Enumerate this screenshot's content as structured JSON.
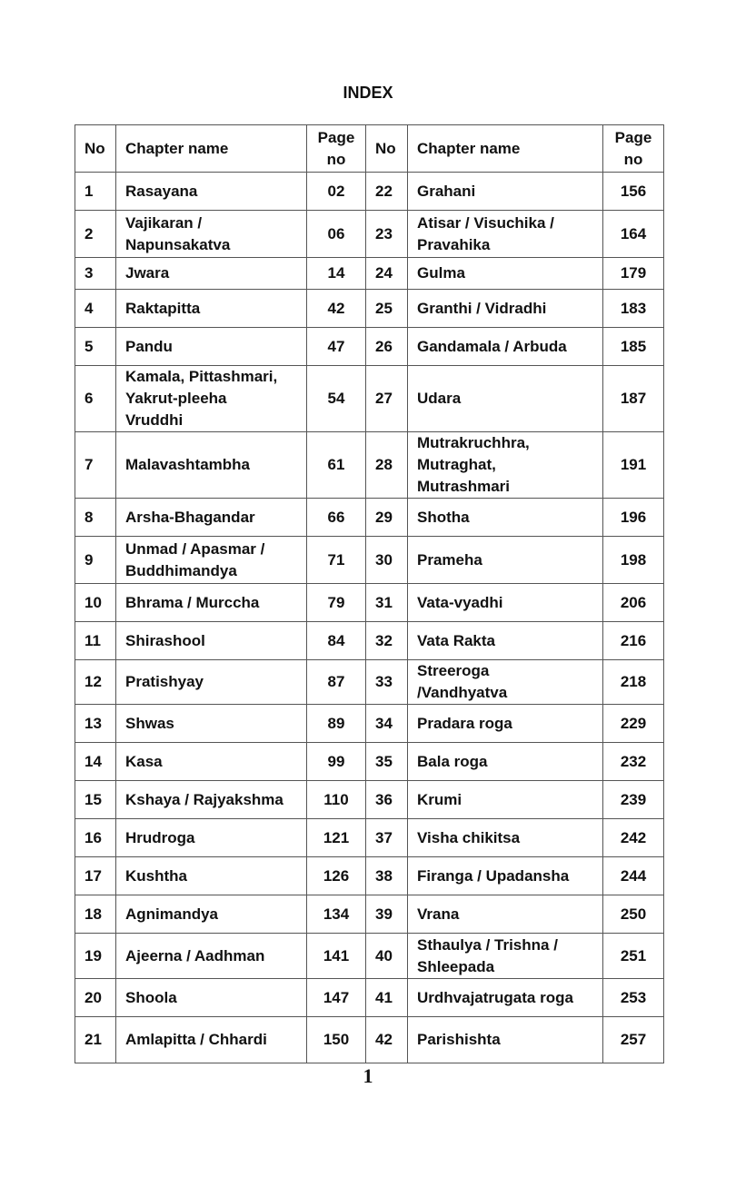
{
  "title": "INDEX",
  "headers": {
    "no": "No",
    "chapter": "Chapter name",
    "page": "Page\nno"
  },
  "rows": [
    [
      {
        "no": "1",
        "name": "Rasayana",
        "page": "02"
      },
      {
        "no": "22",
        "name": "Grahani",
        "page": "156"
      }
    ],
    [
      {
        "no": "2",
        "name": "Vajikaran /\nNapunsakatva",
        "page": "06"
      },
      {
        "no": "23",
        "name": "Atisar / Visuchika /\nPravahika",
        "page": "164"
      }
    ],
    [
      {
        "no": "3",
        "name": "Jwara",
        "page": "14"
      },
      {
        "no": "24",
        "name": "Gulma",
        "page": "179"
      }
    ],
    [
      {
        "no": "4",
        "name": "Raktapitta",
        "page": "42"
      },
      {
        "no": "25",
        "name": "Granthi / Vidradhi",
        "page": "183"
      }
    ],
    [
      {
        "no": "5",
        "name": "Pandu",
        "page": "47"
      },
      {
        "no": "26",
        "name": "Gandamala / Arbuda",
        "page": "185"
      }
    ],
    [
      {
        "no": "6",
        "name": "Kamala, Pittashmari,\nYakrut-pleeha\nVruddhi",
        "page": "54"
      },
      {
        "no": "27",
        "name": "Udara",
        "page": "187"
      }
    ],
    [
      {
        "no": "7",
        "name": "Malavashtambha",
        "page": "61"
      },
      {
        "no": "28",
        "name": "Mutrakruchhra,\nMutraghat,\nMutrashmari",
        "page": "191"
      }
    ],
    [
      {
        "no": "8",
        "name": "Arsha-Bhagandar",
        "page": "66"
      },
      {
        "no": "29",
        "name": "Shotha",
        "page": "196"
      }
    ],
    [
      {
        "no": "9",
        "name": "Unmad / Apasmar /\nBuddhimandya",
        "page": "71"
      },
      {
        "no": "30",
        "name": "Prameha",
        "page": "198"
      }
    ],
    [
      {
        "no": "10",
        "name": "Bhrama / Murccha",
        "page": "79"
      },
      {
        "no": "31",
        "name": "Vata-vyadhi",
        "page": "206"
      }
    ],
    [
      {
        "no": "11",
        "name": "Shirashool",
        "page": "84"
      },
      {
        "no": "32",
        "name": "Vata Rakta",
        "page": "216"
      }
    ],
    [
      {
        "no": "12",
        "name": "Pratishyay",
        "page": "87"
      },
      {
        "no": "33",
        "name": "Streeroga\n/Vandhyatva",
        "page": "218"
      }
    ],
    [
      {
        "no": "13",
        "name": "Shwas",
        "page": "89"
      },
      {
        "no": "34",
        "name": "Pradara roga",
        "page": "229"
      }
    ],
    [
      {
        "no": "14",
        "name": "Kasa",
        "page": "99"
      },
      {
        "no": "35",
        "name": "Bala roga",
        "page": "232"
      }
    ],
    [
      {
        "no": "15",
        "name": "Kshaya / Rajyakshma",
        "page": "110"
      },
      {
        "no": "36",
        "name": "Krumi",
        "page": "239"
      }
    ],
    [
      {
        "no": "16",
        "name": "Hrudroga",
        "page": "121"
      },
      {
        "no": "37",
        "name": "Visha chikitsa",
        "page": "242"
      }
    ],
    [
      {
        "no": "17",
        "name": "Kushtha",
        "page": "126"
      },
      {
        "no": "38",
        "name": "Firanga / Upadansha",
        "page": "244"
      }
    ],
    [
      {
        "no": "18",
        "name": "Agnimandya",
        "page": "134"
      },
      {
        "no": "39",
        "name": "Vrana",
        "page": "250"
      }
    ],
    [
      {
        "no": "19",
        "name": "Ajeerna / Aadhman",
        "page": "141"
      },
      {
        "no": "40",
        "name": "Sthaulya / Trishna /\nShleepada",
        "page": "251"
      }
    ],
    [
      {
        "no": "20",
        "name": "Shoola",
        "page": "147"
      },
      {
        "no": "41",
        "name": "Urdhvajatrugata roga",
        "page": "253"
      }
    ],
    [
      {
        "no": "21",
        "name": "Amlapitta / Chhardi",
        "page": "150"
      },
      {
        "no": "42",
        "name": "Parishishta",
        "page": "257"
      }
    ]
  ],
  "page_number": "1"
}
